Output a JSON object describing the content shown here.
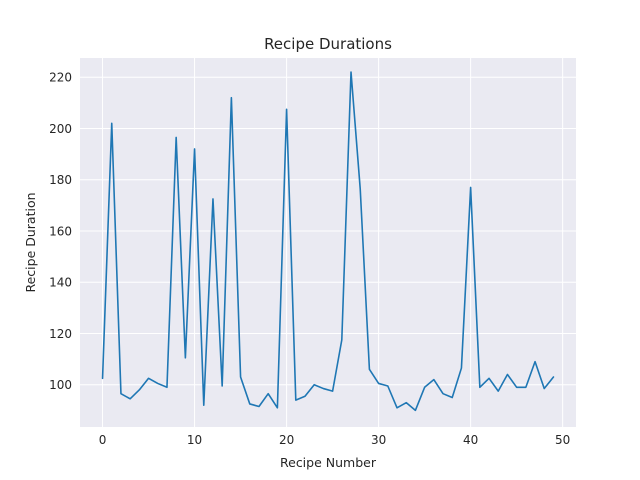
{
  "chart_data": {
    "type": "line",
    "title": "Recipe Durations",
    "xlabel": "Recipe Number",
    "ylabel": "Recipe Duration",
    "xlim": [
      -2.45,
      51.45
    ],
    "ylim": [
      83.5,
      227.5
    ],
    "xticks": [
      0,
      10,
      20,
      30,
      40,
      50
    ],
    "yticks": [
      100,
      120,
      140,
      160,
      180,
      200,
      220
    ],
    "grid": true,
    "colors": {
      "line": "#1f77b4",
      "plot_background": "#eaeaf2",
      "grid": "#ffffff"
    },
    "x": [
      0,
      1,
      2,
      3,
      4,
      5,
      6,
      7,
      8,
      9,
      10,
      11,
      12,
      13,
      14,
      15,
      16,
      17,
      18,
      19,
      20,
      21,
      22,
      23,
      24,
      25,
      26,
      27,
      28,
      29,
      30,
      31,
      32,
      33,
      34,
      35,
      36,
      37,
      38,
      39,
      40,
      41,
      42,
      43,
      44,
      45,
      46,
      47,
      48,
      49
    ],
    "series": [
      {
        "values": [
          102.5,
          202.0,
          96.5,
          94.5,
          98.0,
          102.5,
          100.5,
          99.0,
          196.5,
          110.5,
          192.0,
          92.0,
          172.5,
          99.5,
          212.0,
          103.0,
          92.5,
          91.5,
          96.5,
          91.0,
          207.5,
          94.0,
          95.5,
          100.0,
          98.5,
          97.5,
          117.5,
          222.0,
          176.5,
          106.0,
          100.5,
          99.5,
          91.0,
          93.0,
          90.0,
          99.0,
          102.0,
          96.5,
          95.0,
          106.5,
          177.0,
          99.0,
          102.5,
          97.5,
          104.0,
          99.0,
          99.0,
          109.0,
          98.5,
          103.0
        ]
      }
    ]
  }
}
